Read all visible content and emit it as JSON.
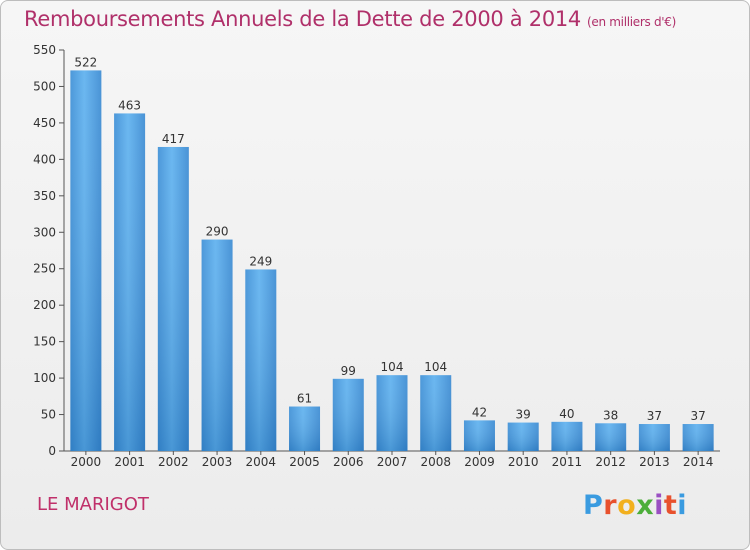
{
  "title": "Remboursements Annuels de la Dette de 2000 à 2014",
  "unit_note": "(en milliers d'€)",
  "commune": "LE MARIGOT",
  "logo": {
    "letters": [
      "P",
      "r",
      "o",
      "x",
      "i",
      "t",
      "i"
    ],
    "colors": [
      "#3a9be0",
      "#e8512d",
      "#f2b01e",
      "#4cae3a",
      "#9a4fc2",
      "#e8512d",
      "#3a9be0"
    ]
  },
  "chart_data": {
    "type": "bar",
    "categories": [
      "2000",
      "2001",
      "2002",
      "2003",
      "2004",
      "2005",
      "2006",
      "2007",
      "2008",
      "2009",
      "2010",
      "2011",
      "2012",
      "2013",
      "2014"
    ],
    "values": [
      522,
      463,
      417,
      290,
      249,
      61,
      99,
      104,
      104,
      42,
      39,
      40,
      38,
      37,
      37
    ],
    "ylim": [
      0,
      550
    ],
    "yticks": [
      0,
      50,
      100,
      150,
      200,
      250,
      300,
      350,
      400,
      450,
      500,
      550
    ],
    "grid": false,
    "bar_color": "#4a9ee0"
  }
}
